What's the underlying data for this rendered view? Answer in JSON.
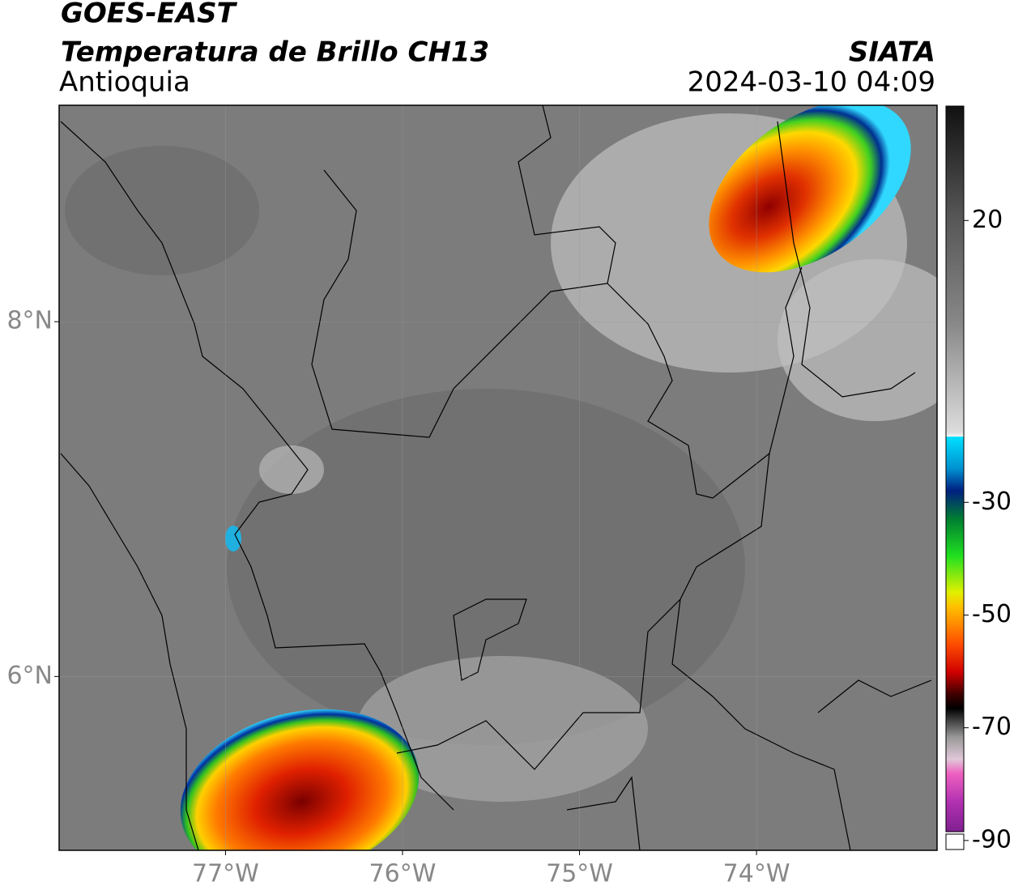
{
  "header": {
    "title": "GOES-EAST",
    "subtitle": "Temperatura de Brillo CH13",
    "region": "Antioquia",
    "source": "SIATA",
    "datetime": "2024-03-10 04:09"
  },
  "map": {
    "lonlim": [
      -77.94,
      -72.98
    ],
    "latlim": [
      5.02,
      9.22
    ],
    "lon_ticks": [
      {
        "value": -77,
        "label": "77°W"
      },
      {
        "value": -76,
        "label": "76°W"
      },
      {
        "value": -75,
        "label": "75°W"
      },
      {
        "value": -74,
        "label": "74°W"
      }
    ],
    "lat_ticks": [
      {
        "value": 8,
        "label": "8°N"
      },
      {
        "value": 6,
        "label": "6°N"
      }
    ]
  },
  "colorbar": {
    "lim": [
      -91.6,
      40.3
    ],
    "ticks": [
      20,
      -30,
      -50,
      -70,
      -90
    ]
  }
}
